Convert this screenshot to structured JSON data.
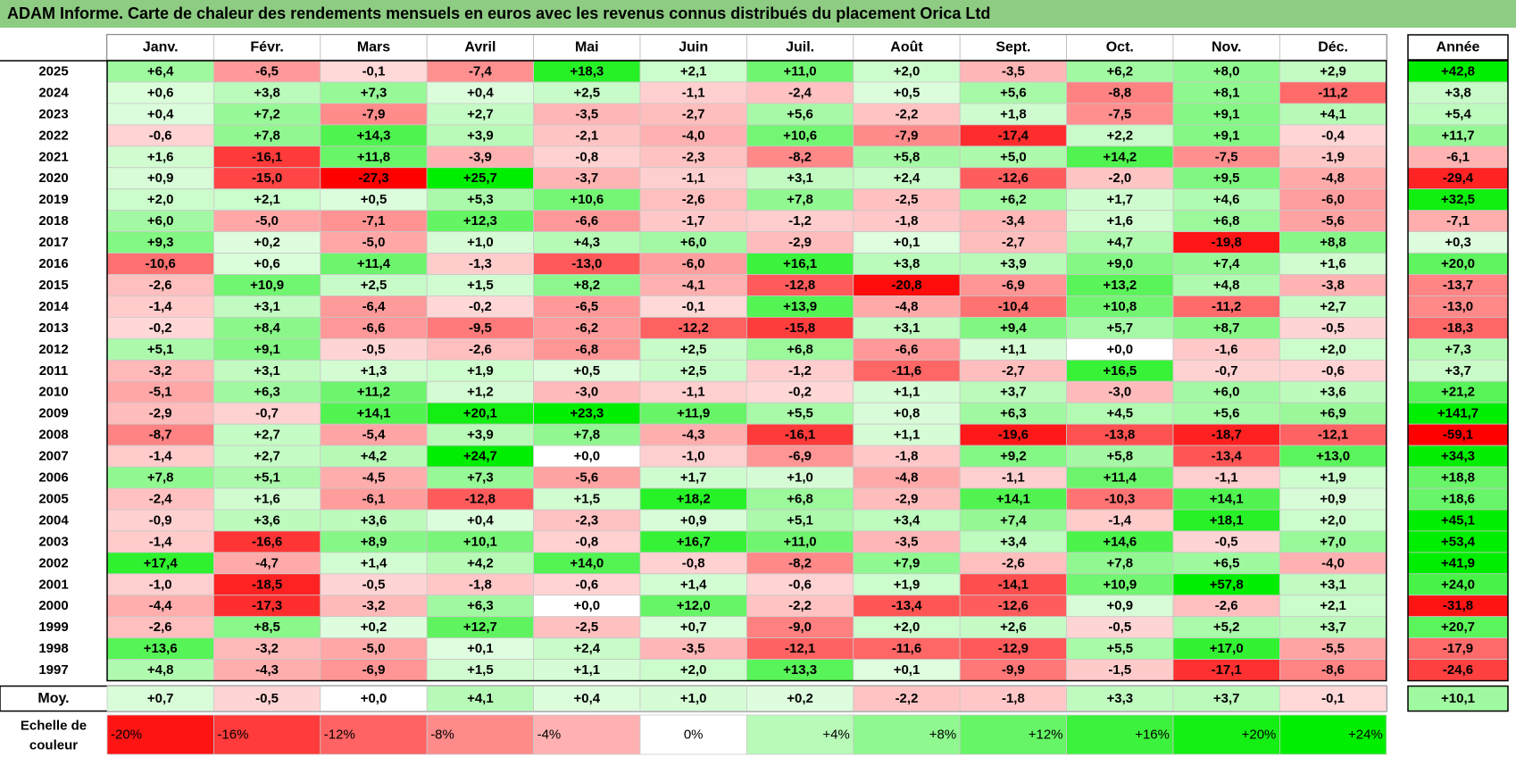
{
  "chart_data": {
    "type": "heatmap",
    "title": "ADAM Informe. Carte de chaleur des rendements mensuels en euros avec les revenus connus distribués du placement Orica Ltd",
    "columns": [
      "Janv.",
      "Févr.",
      "Mars",
      "Avril",
      "Mai",
      "Juin",
      "Juil.",
      "Août",
      "Sept.",
      "Oct.",
      "Nov.",
      "Déc."
    ],
    "annual_header": "Année",
    "rows": [
      {
        "year": "2025",
        "values": [
          6.4,
          -6.5,
          -0.1,
          -7.4,
          18.3,
          2.1,
          11.0,
          2.0,
          -3.5,
          6.2,
          8.0,
          2.9
        ],
        "annual": 42.8
      },
      {
        "year": "2024",
        "values": [
          0.6,
          3.8,
          7.3,
          0.4,
          2.5,
          -1.1,
          -2.4,
          0.5,
          5.6,
          -8.8,
          8.1,
          -11.2
        ],
        "annual": 3.8
      },
      {
        "year": "2023",
        "values": [
          0.4,
          7.2,
          -7.9,
          2.7,
          -3.5,
          -2.7,
          5.6,
          -2.2,
          1.8,
          -7.5,
          9.1,
          4.1
        ],
        "annual": 5.4
      },
      {
        "year": "2022",
        "values": [
          -0.6,
          7.8,
          14.3,
          3.9,
          -2.1,
          -4.0,
          10.6,
          -7.9,
          -17.4,
          2.2,
          9.1,
          -0.4
        ],
        "annual": 11.7
      },
      {
        "year": "2021",
        "values": [
          1.6,
          -16.1,
          11.8,
          -3.9,
          -0.8,
          -2.3,
          -8.2,
          5.8,
          5.0,
          14.2,
          -7.5,
          -1.9
        ],
        "annual": -6.1
      },
      {
        "year": "2020",
        "values": [
          0.9,
          -15.0,
          -27.3,
          25.7,
          -3.7,
          -1.1,
          3.1,
          2.4,
          -12.6,
          -2.0,
          9.5,
          -4.8
        ],
        "annual": -29.4
      },
      {
        "year": "2019",
        "values": [
          2.0,
          2.1,
          0.5,
          5.3,
          10.6,
          -2.6,
          7.8,
          -2.5,
          6.2,
          1.7,
          4.6,
          -6.0
        ],
        "annual": 32.5
      },
      {
        "year": "2018",
        "values": [
          6.0,
          -5.0,
          -7.1,
          12.3,
          -6.6,
          -1.7,
          -1.2,
          -1.8,
          -3.4,
          1.6,
          6.8,
          -5.6
        ],
        "annual": -7.1
      },
      {
        "year": "2017",
        "values": [
          9.3,
          0.2,
          -5.0,
          1.0,
          4.3,
          6.0,
          -2.9,
          0.1,
          -2.7,
          4.7,
          -19.8,
          8.8
        ],
        "annual": 0.3
      },
      {
        "year": "2016",
        "values": [
          -10.6,
          0.6,
          11.4,
          -1.3,
          -13.0,
          -6.0,
          16.1,
          3.8,
          3.9,
          9.0,
          7.4,
          1.6
        ],
        "annual": 20.0
      },
      {
        "year": "2015",
        "values": [
          -2.6,
          10.9,
          2.5,
          1.5,
          8.2,
          -4.1,
          -12.8,
          -20.8,
          -6.9,
          13.2,
          4.8,
          -3.8
        ],
        "annual": -13.7
      },
      {
        "year": "2014",
        "values": [
          -1.4,
          3.1,
          -6.4,
          -0.2,
          -6.5,
          -0.1,
          13.9,
          -4.8,
          -10.4,
          10.8,
          -11.2,
          2.7
        ],
        "annual": -13.0
      },
      {
        "year": "2013",
        "values": [
          -0.2,
          8.4,
          -6.6,
          -9.5,
          -6.2,
          -12.2,
          -15.8,
          3.1,
          9.4,
          5.7,
          8.7,
          -0.5
        ],
        "annual": -18.3
      },
      {
        "year": "2012",
        "values": [
          5.1,
          9.1,
          -0.5,
          -2.6,
          -6.8,
          2.5,
          6.8,
          -6.6,
          1.1,
          -0.0,
          -1.6,
          2.0
        ],
        "annual": 7.3
      },
      {
        "year": "2011",
        "values": [
          -3.2,
          3.1,
          1.3,
          1.9,
          0.5,
          2.5,
          -1.2,
          -11.6,
          -2.7,
          16.5,
          -0.7,
          -0.6
        ],
        "annual": 3.7
      },
      {
        "year": "2010",
        "values": [
          -5.1,
          6.3,
          11.2,
          1.2,
          -3.0,
          -1.1,
          -0.2,
          1.1,
          3.7,
          -3.0,
          6.0,
          3.6
        ],
        "annual": 21.2
      },
      {
        "year": "2009",
        "values": [
          -2.9,
          -0.7,
          14.1,
          20.1,
          23.3,
          11.9,
          5.5,
          0.8,
          6.3,
          4.5,
          5.6,
          6.9
        ],
        "annual": 141.7
      },
      {
        "year": "2008",
        "values": [
          -8.7,
          2.7,
          -5.4,
          3.9,
          7.8,
          -4.3,
          -16.1,
          1.1,
          -19.6,
          -13.8,
          -18.7,
          -12.1
        ],
        "annual": -59.1
      },
      {
        "year": "2007",
        "values": [
          -1.4,
          2.7,
          4.2,
          24.7,
          -0.0,
          -1.0,
          -6.9,
          -1.8,
          9.2,
          5.8,
          -13.4,
          13.0
        ],
        "annual": 34.3
      },
      {
        "year": "2006",
        "values": [
          7.8,
          5.1,
          -4.5,
          7.3,
          -5.6,
          1.7,
          1.0,
          -4.8,
          -1.1,
          11.4,
          -1.1,
          1.9
        ],
        "annual": 18.8
      },
      {
        "year": "2005",
        "values": [
          -2.4,
          1.6,
          -6.1,
          -12.8,
          1.5,
          18.2,
          6.8,
          -2.9,
          14.1,
          -10.3,
          14.1,
          0.9
        ],
        "annual": 18.6
      },
      {
        "year": "2004",
        "values": [
          -0.9,
          3.6,
          3.6,
          0.4,
          -2.3,
          0.9,
          5.1,
          3.4,
          7.4,
          -1.4,
          18.1,
          2.0
        ],
        "annual": 45.1
      },
      {
        "year": "2003",
        "values": [
          -1.4,
          -16.6,
          8.9,
          10.1,
          -0.8,
          16.7,
          11.0,
          -3.5,
          3.4,
          14.6,
          -0.5,
          7.0
        ],
        "annual": 53.4
      },
      {
        "year": "2002",
        "values": [
          17.4,
          -4.7,
          1.4,
          4.2,
          14.0,
          -0.8,
          -8.2,
          7.9,
          -2.6,
          7.8,
          6.5,
          -4.0
        ],
        "annual": 41.9
      },
      {
        "year": "2001",
        "values": [
          -1.0,
          -18.5,
          -0.5,
          -1.8,
          -0.6,
          1.4,
          -0.6,
          1.9,
          -14.1,
          10.9,
          57.8,
          3.1
        ],
        "annual": 24.0
      },
      {
        "year": "2000",
        "values": [
          -4.4,
          -17.3,
          -3.2,
          6.3,
          0.0,
          12.0,
          -2.2,
          -13.4,
          -12.6,
          0.9,
          -2.6,
          2.1
        ],
        "annual": -31.8
      },
      {
        "year": "1999",
        "values": [
          -2.6,
          8.5,
          0.2,
          12.7,
          -2.5,
          0.7,
          -9.0,
          2.0,
          2.6,
          -0.5,
          5.2,
          3.7
        ],
        "annual": 20.7
      },
      {
        "year": "1998",
        "values": [
          13.6,
          -3.2,
          -5.0,
          0.1,
          2.4,
          -3.5,
          -12.1,
          -11.6,
          -12.9,
          5.5,
          17.0,
          -5.5
        ],
        "annual": -17.9
      },
      {
        "year": "1997",
        "values": [
          4.8,
          -4.3,
          -6.9,
          1.5,
          1.1,
          2.0,
          13.3,
          0.1,
          -9.9,
          -1.5,
          -17.1,
          -8.6
        ],
        "annual": -24.6
      }
    ],
    "average": {
      "label": "Moy.",
      "values": [
        0.7,
        -0.5,
        0.0,
        4.1,
        0.4,
        1.0,
        0.2,
        -2.2,
        -1.8,
        3.3,
        3.7,
        -0.1
      ],
      "annual": 10.1
    },
    "scale": {
      "label_lines": [
        "Echelle de",
        "couleur"
      ],
      "steps": [
        -20,
        -16,
        -12,
        -8,
        -4,
        0,
        4,
        8,
        12,
        16,
        20,
        24
      ],
      "labels": [
        "-20%",
        "-16%",
        "-12%",
        "-8%",
        "-4%",
        "0%",
        "+4%",
        "+8%",
        "+12%",
        "+16%",
        "+20%",
        "+24%"
      ]
    },
    "colors": {
      "negative": "#ff0000",
      "positive": "#00ee00",
      "neutral": "#ffffff",
      "title_bar": "#8dcc82"
    }
  }
}
